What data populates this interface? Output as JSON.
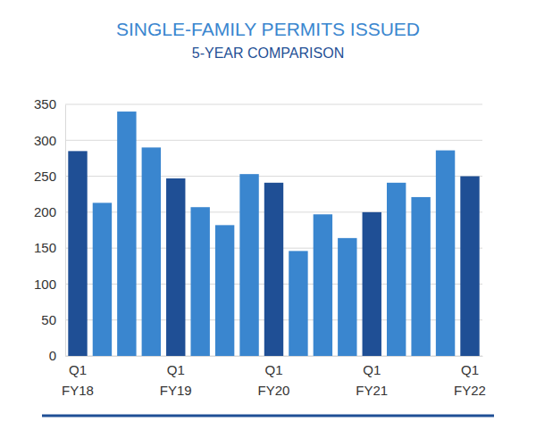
{
  "chart_data": {
    "type": "bar",
    "title": "SINGLE-FAMILY PERMITS ISSUED",
    "subtitle": "5-YEAR COMPARISON",
    "categories": [
      "Q1 FY18",
      null,
      null,
      null,
      "Q1 FY19",
      null,
      null,
      null,
      "Q1 FY20",
      null,
      null,
      null,
      "Q1 FY21",
      null,
      null,
      null,
      "Q1 FY22"
    ],
    "values": [
      285,
      213,
      340,
      290,
      247,
      207,
      182,
      253,
      241,
      146,
      197,
      164,
      200,
      241,
      221,
      286,
      250
    ],
    "colors": [
      "#1f4f95",
      "#3a86cf",
      "#3a86cf",
      "#3a86cf",
      "#1f4f95",
      "#3a86cf",
      "#3a86cf",
      "#3a86cf",
      "#1f4f95",
      "#3a86cf",
      "#3a86cf",
      "#3a86cf",
      "#1f4f95",
      "#3a86cf",
      "#3a86cf",
      "#3a86cf",
      "#1f4f95"
    ],
    "ylim": [
      0,
      350
    ],
    "yticks": [
      0,
      50,
      100,
      150,
      200,
      250,
      300,
      350
    ],
    "grid": true
  }
}
